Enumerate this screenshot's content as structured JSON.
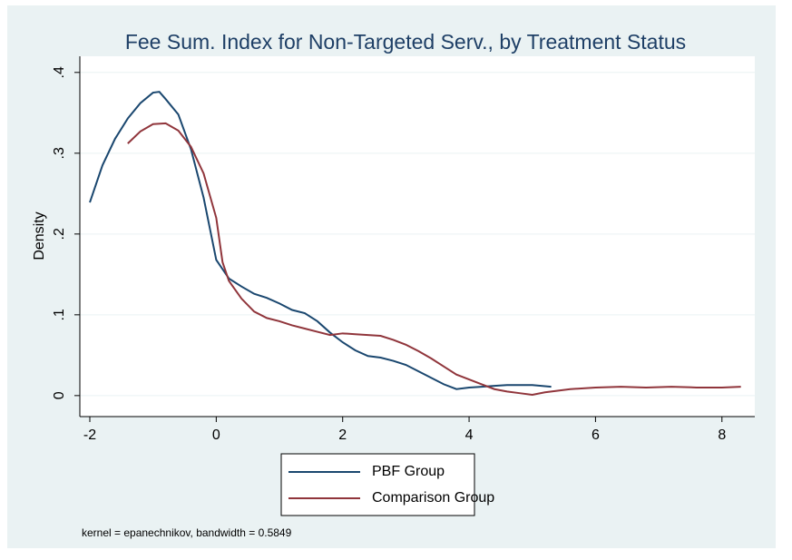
{
  "chart_data": {
    "type": "line",
    "title": "Fee Sum. Index for Non-Targeted Serv., by Treatment Status",
    "y_label": "Density",
    "note": "kernel = epanechnikov, bandwidth = 0.5849",
    "xlim": [
      -2.158,
      8.52
    ],
    "xticks": [
      -2,
      0,
      2,
      4,
      6,
      8
    ],
    "ylim": [
      -0.026,
      0.42
    ],
    "yticks": [
      0,
      {
        "value": 0.1,
        "label": ".1"
      },
      {
        "value": 0.2,
        "label": ".2"
      },
      {
        "value": 0.3,
        "label": ".3"
      },
      {
        "value": 0.4,
        "label": ".4"
      }
    ],
    "grid": true,
    "series": [
      {
        "name": "PBF Group",
        "color": "#1a476f",
        "x": [
          -2.0,
          -1.8,
          -1.6,
          -1.4,
          -1.2,
          -1.0,
          -0.9,
          -0.8,
          -0.6,
          -0.4,
          -0.2,
          0.0,
          0.2,
          0.4,
          0.6,
          0.8,
          1.0,
          1.2,
          1.4,
          1.6,
          1.8,
          2.0,
          2.2,
          2.4,
          2.6,
          2.8,
          3.0,
          3.2,
          3.4,
          3.6,
          3.8,
          4.0,
          4.2,
          4.4,
          4.6,
          4.8,
          5.0,
          5.3
        ],
        "values": [
          0.239,
          0.285,
          0.318,
          0.343,
          0.362,
          0.375,
          0.376,
          0.367,
          0.348,
          0.305,
          0.245,
          0.168,
          0.145,
          0.135,
          0.126,
          0.121,
          0.114,
          0.106,
          0.102,
          0.092,
          0.078,
          0.066,
          0.056,
          0.049,
          0.047,
          0.043,
          0.038,
          0.03,
          0.022,
          0.014,
          0.008,
          0.01,
          0.011,
          0.012,
          0.013,
          0.013,
          0.013,
          0.011
        ]
      },
      {
        "name": "Comparison Group",
        "color": "#90353b",
        "x": [
          -1.4,
          -1.2,
          -1.0,
          -0.8,
          -0.6,
          -0.4,
          -0.2,
          0.0,
          0.1,
          0.2,
          0.4,
          0.6,
          0.8,
          1.0,
          1.2,
          1.4,
          1.6,
          1.8,
          2.0,
          2.2,
          2.4,
          2.6,
          2.8,
          3.0,
          3.2,
          3.4,
          3.6,
          3.8,
          4.0,
          4.2,
          4.4,
          4.6,
          4.8,
          5.0,
          5.2,
          5.6,
          6.0,
          6.4,
          6.8,
          7.2,
          7.6,
          8.0,
          8.3
        ],
        "values": [
          0.312,
          0.327,
          0.336,
          0.337,
          0.328,
          0.308,
          0.275,
          0.22,
          0.165,
          0.142,
          0.12,
          0.104,
          0.096,
          0.092,
          0.087,
          0.083,
          0.079,
          0.075,
          0.077,
          0.076,
          0.075,
          0.074,
          0.069,
          0.063,
          0.055,
          0.046,
          0.036,
          0.026,
          0.02,
          0.014,
          0.008,
          0.005,
          0.003,
          0.001,
          0.004,
          0.008,
          0.01,
          0.011,
          0.01,
          0.011,
          0.01,
          0.01,
          0.011
        ]
      }
    ]
  }
}
